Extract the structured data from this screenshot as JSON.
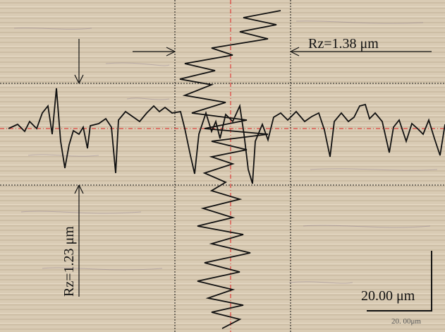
{
  "labels": {
    "rz_horizontal": "Rz=1.38 μm",
    "rz_vertical": "Rz=1.23 μm",
    "scale_bar": "20.00 μm",
    "scale_watermark": "20. 00μm"
  }
}
